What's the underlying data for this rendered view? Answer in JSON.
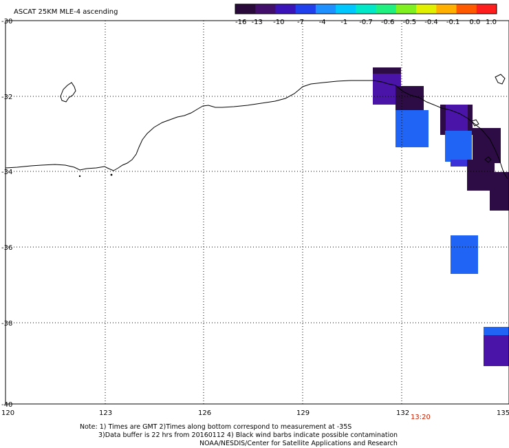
{
  "title": "ASCAT 25KM MLE-4 ascending",
  "colorbar": {
    "labels": [
      "-16",
      "-13",
      "-10",
      "-7",
      "-4",
      "-1",
      "-0.7",
      "-0.6",
      "-0.5",
      "-0.4",
      "-0.1",
      "0.0",
      "1.0"
    ],
    "colors": [
      "#2a0a3a",
      "#42106a",
      "#3a14b8",
      "#2040ee",
      "#1e90ff",
      "#00c8ff",
      "#00e8c8",
      "#20f080",
      "#80f020",
      "#e0f000",
      "#ffb000",
      "#ff5a00",
      "#ff1e1e"
    ]
  },
  "axes": {
    "lon_ticks": [
      "120",
      "123",
      "126",
      "129",
      "132",
      "135"
    ],
    "lat_ticks": [
      "-30",
      "-32",
      "-34",
      "-36",
      "-38",
      "-40"
    ]
  },
  "time_label": "13:20",
  "notes": [
    "Note: 1) Times are GMT 2)Times along bottom correspond to measurement at -35S",
    "3)Data buffer is 22 hrs from 20160112 4) Black wind barbs indicate possible contamination",
    "NOAA/NESDIS/Center for Satellite Applications and Research"
  ],
  "colors": {
    "dark_purple": "#2d0c45",
    "purple": "#4a14a8",
    "blue": "#1f64f5",
    "time_label": "#c82000"
  }
}
